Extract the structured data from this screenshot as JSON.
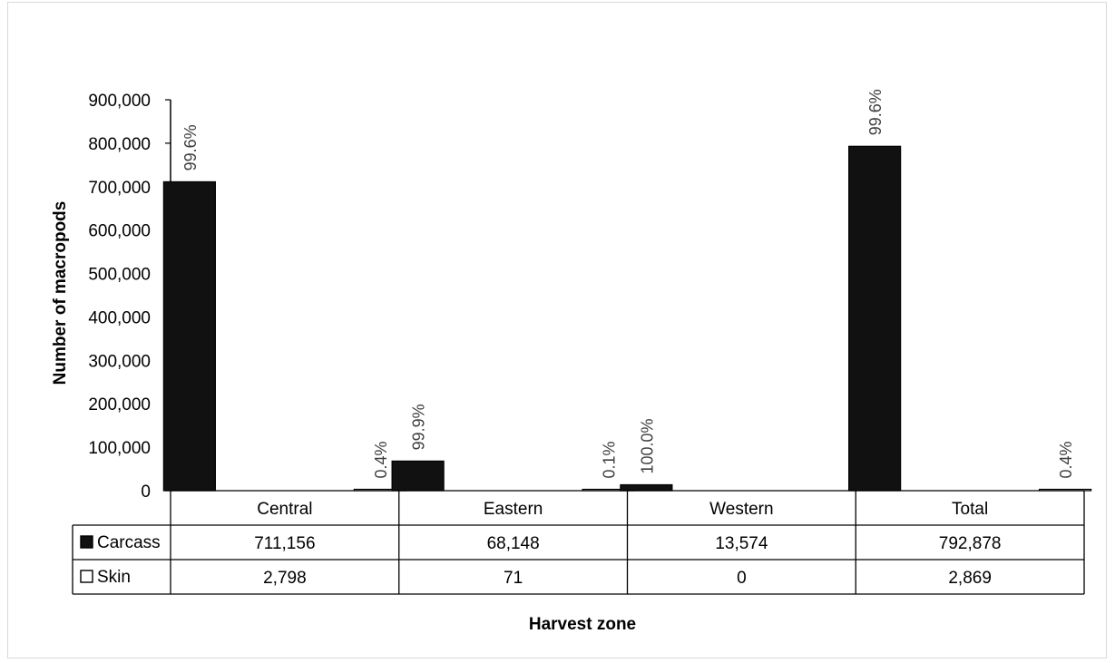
{
  "chart_data": {
    "type": "bar",
    "categories": [
      "Central",
      "Eastern",
      "Western",
      "Total"
    ],
    "series": [
      {
        "name": "Carcass",
        "values": [
          711156,
          68148,
          13574,
          792878
        ],
        "labels": [
          "99.6%",
          "99.9%",
          "100.0%",
          "99.6%"
        ],
        "table_values": [
          "711,156",
          "68,148",
          "13,574",
          "792,878"
        ],
        "color": "#111111"
      },
      {
        "name": "Skin",
        "values": [
          2798,
          71,
          0,
          2869
        ],
        "labels": [
          "0.4%",
          "0.1%",
          "",
          "0.4%"
        ],
        "table_values": [
          "2,798",
          "71",
          "0",
          "2,869"
        ],
        "color": "#ffffff"
      }
    ],
    "xlabel": "Harvest zone",
    "ylabel": "Number of macropods",
    "ylim": [
      0,
      900000
    ],
    "yticks": [
      "0",
      "100,000",
      "200,000",
      "300,000",
      "400,000",
      "500,000",
      "600,000",
      "700,000",
      "800,000",
      "900,000"
    ],
    "grid": false,
    "legend": "data-table"
  }
}
